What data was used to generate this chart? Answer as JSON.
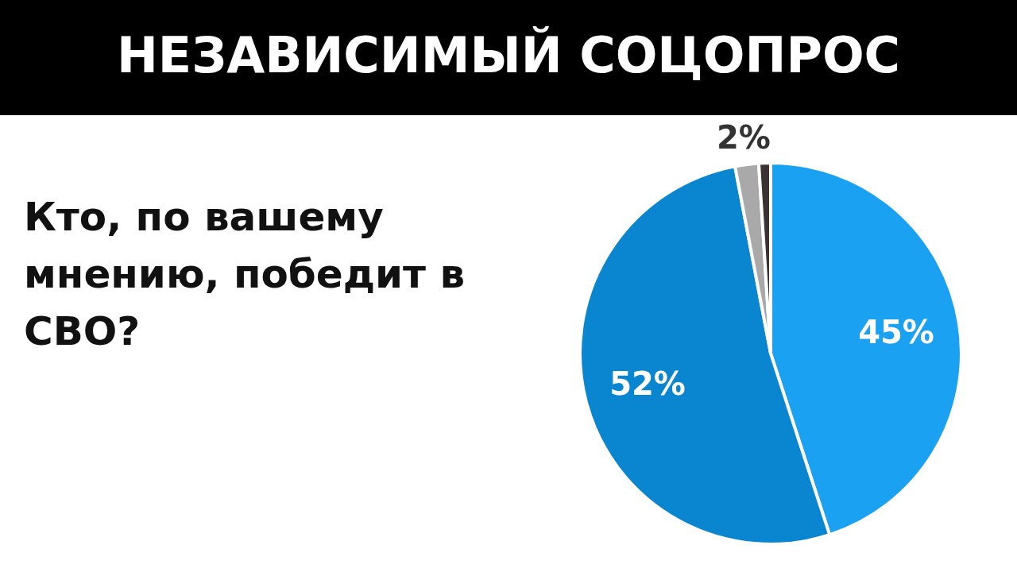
{
  "chart_data": {
    "type": "pie",
    "title": "НЕЗАВИСИМЫЙ СОЦОПРОС",
    "subtitle": "Кто, по вашему мнению, победит в СВО?",
    "categories": [
      null,
      null,
      null,
      null
    ],
    "values": [
      45,
      52,
      2,
      1
    ],
    "colors": [
      "#1ba1f2",
      "#0a85d0",
      "#a9a9a9",
      "#3a3331"
    ],
    "value_labels": [
      "45%",
      "52%",
      "2%",
      null
    ],
    "legend": false
  }
}
